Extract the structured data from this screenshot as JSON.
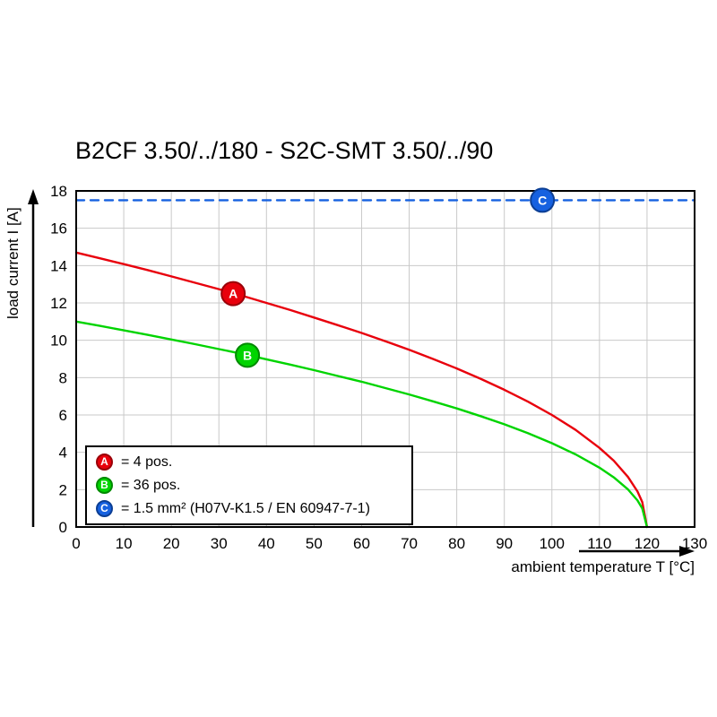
{
  "page": {
    "background": "#ffffff"
  },
  "chart_data": {
    "type": "line",
    "title": "B2CF 3.50/../180 - S2C-SMT 3.50/../90",
    "xlabel": "ambient temperature T [°C]",
    "ylabel": "load current I [A]",
    "xlim": [
      0,
      130
    ],
    "ylim": [
      0,
      18
    ],
    "xticks": [
      0,
      10,
      20,
      30,
      40,
      50,
      60,
      70,
      80,
      90,
      100,
      110,
      120,
      130
    ],
    "yticks": [
      0,
      2,
      4,
      6,
      8,
      10,
      12,
      14,
      16,
      18
    ],
    "grid": true,
    "grid_color": "#c9c9c9",
    "frame_color": "#000000",
    "legend_position": "bottom-left-inside",
    "series": [
      {
        "name": "A",
        "legend": "= 4 pos.",
        "color": "#e8000c",
        "edge": "#9a0008",
        "style": "solid",
        "marker_at": [
          33,
          12.5
        ],
        "points": [
          [
            0,
            14.7
          ],
          [
            5,
            14.39
          ],
          [
            10,
            14.08
          ],
          [
            15,
            13.76
          ],
          [
            20,
            13.42
          ],
          [
            25,
            13.08
          ],
          [
            30,
            12.74
          ],
          [
            35,
            12.38
          ],
          [
            40,
            12.0
          ],
          [
            45,
            11.62
          ],
          [
            50,
            11.22
          ],
          [
            55,
            10.81
          ],
          [
            60,
            10.39
          ],
          [
            65,
            9.95
          ],
          [
            70,
            9.49
          ],
          [
            75,
            9.0
          ],
          [
            80,
            8.49
          ],
          [
            85,
            7.94
          ],
          [
            90,
            7.35
          ],
          [
            95,
            6.71
          ],
          [
            100,
            6.0
          ],
          [
            105,
            5.2
          ],
          [
            110,
            4.24
          ],
          [
            113,
            3.55
          ],
          [
            116,
            2.68
          ],
          [
            118,
            1.9
          ],
          [
            119,
            1.34
          ],
          [
            120,
            0
          ]
        ]
      },
      {
        "name": "B",
        "legend": "= 36 pos.",
        "color": "#00d400",
        "edge": "#008a00",
        "style": "solid",
        "marker_at": [
          36,
          9.2
        ],
        "points": [
          [
            0,
            11.0
          ],
          [
            5,
            10.77
          ],
          [
            10,
            10.53
          ],
          [
            15,
            10.29
          ],
          [
            20,
            10.04
          ],
          [
            25,
            9.79
          ],
          [
            30,
            9.53
          ],
          [
            35,
            9.27
          ],
          [
            40,
            8.98
          ],
          [
            45,
            8.7
          ],
          [
            50,
            8.4
          ],
          [
            55,
            8.09
          ],
          [
            60,
            7.78
          ],
          [
            65,
            7.44
          ],
          [
            70,
            7.1
          ],
          [
            75,
            6.73
          ],
          [
            80,
            6.35
          ],
          [
            85,
            5.94
          ],
          [
            90,
            5.5
          ],
          [
            95,
            5.02
          ],
          [
            100,
            4.49
          ],
          [
            105,
            3.89
          ],
          [
            110,
            3.18
          ],
          [
            113,
            2.66
          ],
          [
            116,
            2.01
          ],
          [
            118,
            1.42
          ],
          [
            119,
            1.0
          ],
          [
            120,
            0
          ]
        ]
      },
      {
        "name": "C",
        "legend": "= 1.5 mm² (H07V-K1.5 / EN 60947-7-1)",
        "color": "#1661e0",
        "edge": "#0b3e94",
        "style": "dashed",
        "marker_at": [
          98,
          17.5
        ],
        "points": [
          [
            0,
            17.5
          ],
          [
            130,
            17.5
          ]
        ]
      }
    ]
  }
}
